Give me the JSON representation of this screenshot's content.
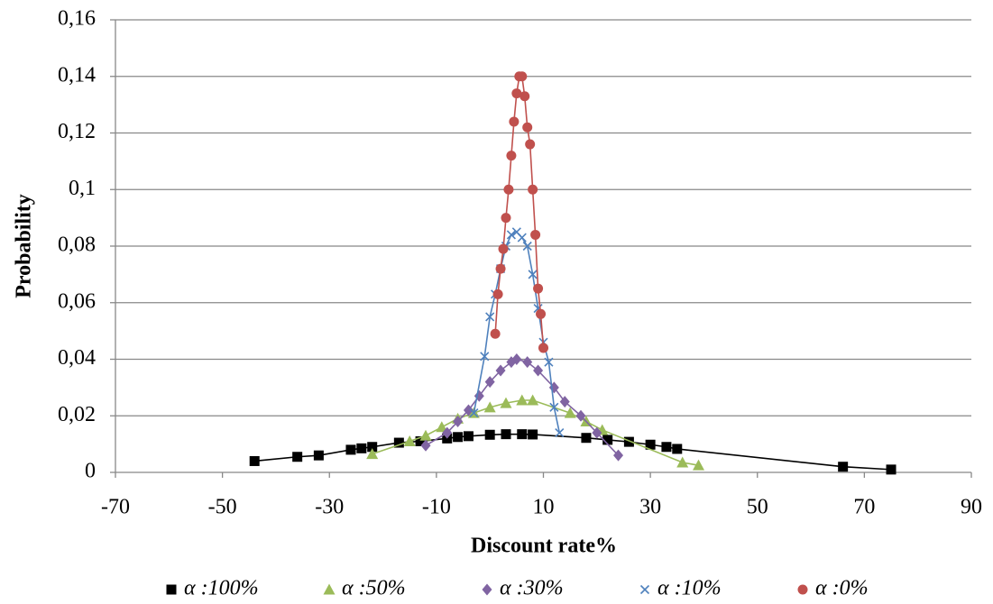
{
  "chart_data": {
    "type": "line",
    "x_label": "Discount rate%",
    "y_label": "Probability",
    "xlim": [
      -70,
      90
    ],
    "xticks": [
      -70,
      -50,
      -30,
      -10,
      10,
      30,
      50,
      70,
      90
    ],
    "ylim": [
      0,
      0.16
    ],
    "yticks": [
      0,
      {
        "value": 0.02,
        "label": "0,02"
      },
      {
        "value": 0.04,
        "label": "0,04"
      },
      {
        "value": 0.06,
        "label": "0,06"
      },
      {
        "value": 0.08,
        "label": "0,08"
      },
      {
        "value": 0.1,
        "label": "0,1"
      },
      {
        "value": 0.12,
        "label": "0,12"
      },
      {
        "value": 0.14,
        "label": "0,14"
      },
      {
        "value": 0.16,
        "label": "0,16"
      }
    ],
    "grid": true,
    "legend": "bottom",
    "series": [
      {
        "name": "α :100%",
        "color": "#000000",
        "marker": "square",
        "x": [
          -44,
          -36,
          -32,
          -26,
          -24,
          -22,
          -17,
          -13,
          -8,
          -6,
          -4,
          0,
          3,
          6,
          8,
          18,
          22,
          26,
          30,
          33,
          35,
          66,
          75
        ],
        "values": [
          0.004,
          0.0055,
          0.006,
          0.008,
          0.0085,
          0.009,
          0.0105,
          0.011,
          0.012,
          0.0125,
          0.0128,
          0.0133,
          0.0135,
          0.0135,
          0.0134,
          0.0122,
          0.0115,
          0.0108,
          0.0098,
          0.009,
          0.0083,
          0.002,
          0.001
        ]
      },
      {
        "name": "α :50%",
        "color": "#9bbb59",
        "marker": "triangle",
        "x": [
          -22,
          -15,
          -12,
          -9,
          -6,
          -3,
          0,
          3,
          6,
          8,
          15,
          18,
          21,
          36,
          39
        ],
        "values": [
          0.0065,
          0.011,
          0.013,
          0.016,
          0.019,
          0.021,
          0.023,
          0.0245,
          0.0255,
          0.0255,
          0.021,
          0.018,
          0.015,
          0.0035,
          0.0025
        ]
      },
      {
        "name": "α :30%",
        "color": "#8064a2",
        "marker": "diamond",
        "x": [
          -12,
          -8,
          -6,
          -4,
          -2,
          0,
          2,
          4,
          5,
          7,
          9,
          12,
          14,
          17,
          20,
          24
        ],
        "values": [
          0.0095,
          0.014,
          0.018,
          0.022,
          0.027,
          0.032,
          0.036,
          0.039,
          0.04,
          0.039,
          0.036,
          0.03,
          0.025,
          0.02,
          0.014,
          0.006
        ]
      },
      {
        "name": "α :10%",
        "color": "#4f81bd",
        "marker": "cross",
        "x": [
          -3,
          -1,
          0,
          1,
          2,
          3,
          4,
          5,
          6,
          7,
          8,
          9,
          10,
          11,
          12,
          13
        ],
        "values": [
          0.021,
          0.041,
          0.055,
          0.063,
          0.072,
          0.08,
          0.084,
          0.085,
          0.083,
          0.08,
          0.07,
          0.058,
          0.046,
          0.039,
          0.023,
          0.014
        ]
      },
      {
        "name": "α :0%",
        "color": "#c0504d",
        "marker": "circle",
        "x": [
          1,
          1.5,
          2,
          2.5,
          3,
          3.5,
          4,
          4.5,
          5,
          5.5,
          6,
          6.5,
          7,
          7.5,
          8,
          8.5,
          9,
          9.5,
          10
        ],
        "values": [
          0.049,
          0.063,
          0.072,
          0.079,
          0.09,
          0.1,
          0.112,
          0.124,
          0.134,
          0.14,
          0.14,
          0.133,
          0.122,
          0.116,
          0.1,
          0.084,
          0.065,
          0.056,
          0.044
        ]
      }
    ]
  }
}
